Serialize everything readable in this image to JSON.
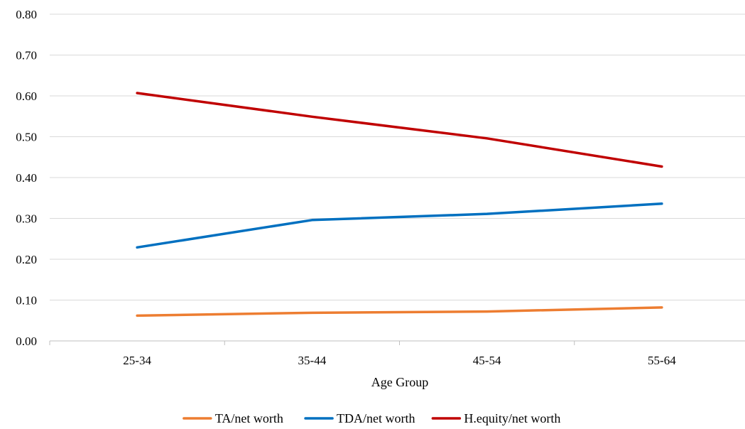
{
  "chart_data": {
    "type": "line",
    "title": "",
    "xlabel": "Age Group",
    "ylabel": "",
    "categories": [
      "25-34",
      "35-44",
      "45-54",
      "55-64"
    ],
    "ylim": [
      0,
      0.8
    ],
    "yticks": [
      "0.00",
      "0.10",
      "0.20",
      "0.30",
      "0.40",
      "0.50",
      "0.60",
      "0.70",
      "0.80"
    ],
    "grid": true,
    "legend_position": "bottom",
    "series": [
      {
        "name": "TA/net worth",
        "color": "#ed7d31",
        "values": [
          0.062,
          0.069,
          0.072,
          0.082
        ]
      },
      {
        "name": "TDA/net worth",
        "color": "#0070c0",
        "values": [
          0.229,
          0.296,
          0.311,
          0.336
        ]
      },
      {
        "name": "H.equity/net worth",
        "color": "#c00000",
        "values": [
          0.607,
          0.549,
          0.496,
          0.427
        ]
      }
    ]
  }
}
